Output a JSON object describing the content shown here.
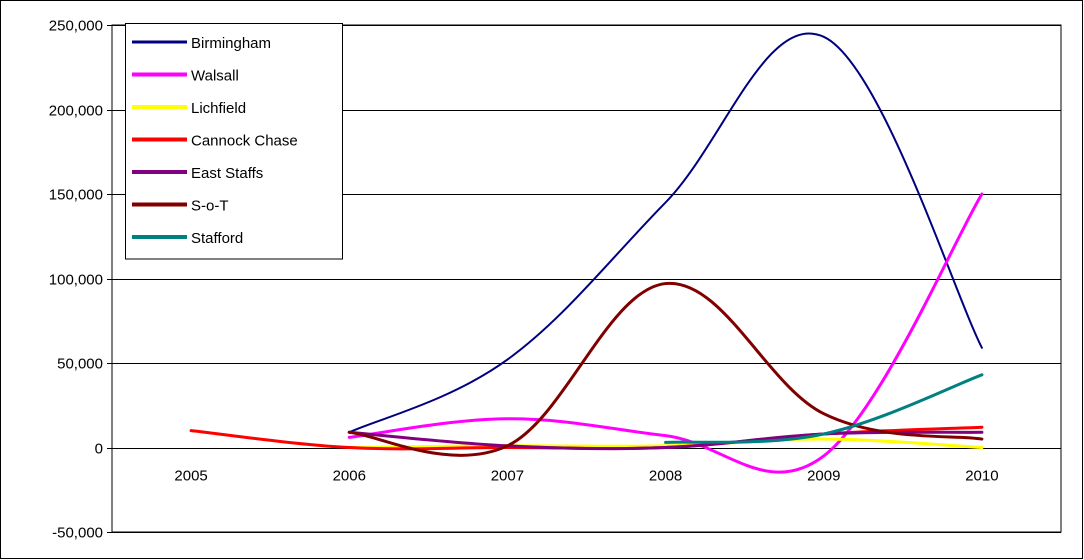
{
  "chart_data": {
    "type": "line",
    "title": "",
    "xlabel": "",
    "ylabel": "",
    "categories": [
      "2005",
      "2006",
      "2007",
      "2008",
      "2009",
      "2010"
    ],
    "ylim": [
      -50000,
      250000
    ],
    "yticks": [
      -50000,
      0,
      50000,
      100000,
      150000,
      200000,
      250000
    ],
    "ytick_labels": [
      "-50,000",
      "0",
      "50,000",
      "100,000",
      "150,000",
      "200,000",
      "250,000"
    ],
    "grid": true,
    "legend_position": "top-left",
    "smooth": true,
    "series": [
      {
        "name": "Birmingham",
        "color": "#000080",
        "width": 2,
        "values": [
          null,
          9000,
          52000,
          145000,
          243000,
          59000
        ]
      },
      {
        "name": "Walsall",
        "color": "#ff00ff",
        "width": 3,
        "values": [
          null,
          6000,
          17000,
          7000,
          -5000,
          150000
        ]
      },
      {
        "name": "Lichfield",
        "color": "#ffff00",
        "width": 3,
        "values": [
          null,
          0,
          1000,
          1000,
          5000,
          0
        ]
      },
      {
        "name": "Cannock Chase",
        "color": "#ff0000",
        "width": 3,
        "values": [
          10000,
          0,
          0,
          0,
          8000,
          12000
        ]
      },
      {
        "name": "East Staffs",
        "color": "#800080",
        "width": 3,
        "values": [
          null,
          9000,
          1000,
          0,
          8000,
          9000
        ]
      },
      {
        "name": "S-o-T",
        "color": "#800000",
        "width": 3,
        "values": [
          null,
          9000,
          1000,
          97000,
          20000,
          5000
        ]
      },
      {
        "name": "Stafford",
        "color": "#008080",
        "width": 3,
        "values": [
          null,
          null,
          null,
          3000,
          8000,
          43000
        ]
      }
    ]
  }
}
